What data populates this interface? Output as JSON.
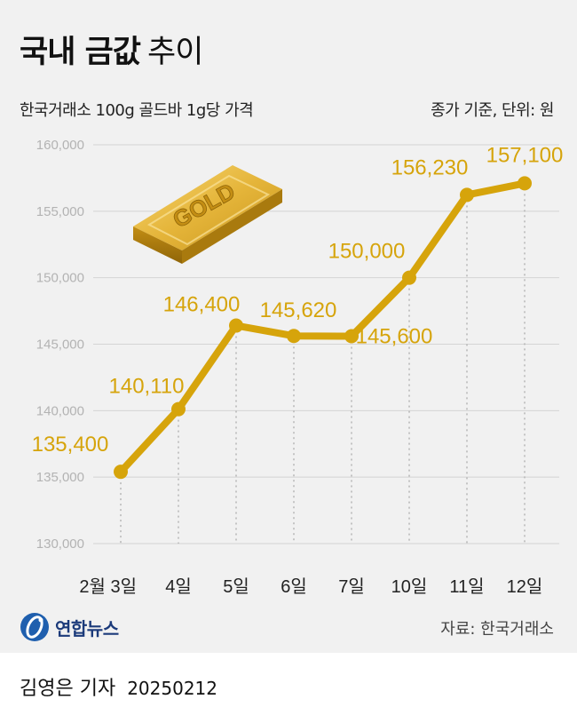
{
  "header": {
    "title_bold": "국내 금값",
    "title_light": "추이",
    "subtitle": "한국거래소 100g 골드바 1g당 가격",
    "unit": "종가 기준, 단위: 원"
  },
  "illustration": {
    "gold_bar_label": "GOLD"
  },
  "footer": {
    "logo_text": "연합뉴스",
    "source": "자료: 한국거래소",
    "byline": "김영은 기자",
    "date": "20250212"
  },
  "colors": {
    "line": "#d6a40b",
    "label": "#d6a40b",
    "background": "#f1f1f1",
    "grid": "#d4d4d4",
    "tick": "#b3b3b3"
  },
  "chart_data": {
    "type": "line",
    "categories": [
      "2월 3일",
      "4일",
      "5일",
      "6일",
      "7일",
      "10일",
      "11일",
      "12일"
    ],
    "values": [
      135400,
      140110,
      146400,
      145620,
      145600,
      150000,
      156230,
      157100
    ],
    "value_labels": [
      "135,400",
      "140,110",
      "146,400",
      "145,620",
      "145,600",
      "150,000",
      "156,230",
      "157,100"
    ],
    "y_ticks": [
      "130,000",
      "135,000",
      "140,000",
      "145,000",
      "150,000",
      "155,000",
      "160,000"
    ],
    "ylim": [
      130000,
      160000
    ],
    "grid": true
  }
}
